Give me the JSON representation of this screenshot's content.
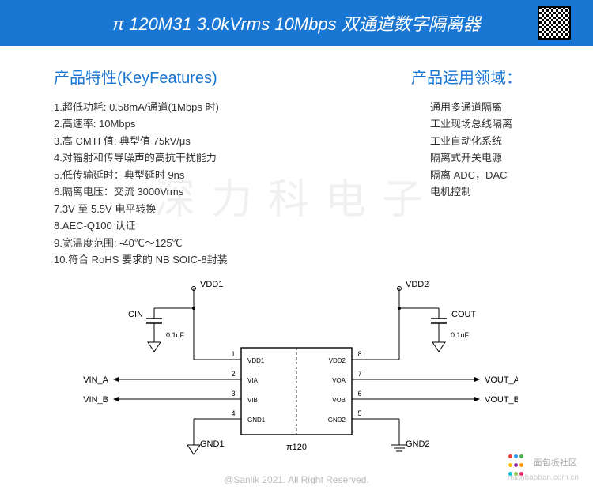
{
  "header": {
    "title": "π 120M31 3.0kVrms 10Mbps 双通道数字隔离器",
    "title_color": "#ffffff",
    "bg_color": "#1976d2"
  },
  "watermark": "深力科电子",
  "features": {
    "title": "产品特性(KeyFeatures)",
    "title_color": "#1976d2",
    "items": [
      "1.超低功耗: 0.58mA/通道(1Mbps 时)",
      "2.高速率: 10Mbps",
      "3.高 CMTI 值: 典型值 75kV/μs",
      "4.对辐射和传导噪声的高抗干扰能力",
      "5.低传输延时：典型延时 9ns",
      "6.隔离电压：交流 3000Vrms",
      "7.3V 至 5.5V 电平转换",
      "8.AEC-Q100 认证",
      "9.宽温度范围: -40℃～125℃",
      "10.符合 RoHS 要求的 NB SOIC-8封装"
    ]
  },
  "applications": {
    "title": "产品运用领域：",
    "title_color": "#1976d2",
    "items": [
      "通用多通道隔离",
      "工业现场总线隔离",
      "工业自动化系统",
      "隔离式开关电源",
      "隔离 ADC，DAC",
      "电机控制"
    ]
  },
  "schematic": {
    "chip_label": "π120",
    "left_power": "VDD1",
    "right_power": "VDD2",
    "cap_left": {
      "name": "CIN",
      "value": "0.1uF"
    },
    "cap_right": {
      "name": "COUT",
      "value": "0.1uF"
    },
    "gnd_left": "GND1",
    "gnd_right": "GND2",
    "inputs": [
      "VIN_A",
      "VIN_B"
    ],
    "outputs": [
      "VOUT_A",
      "VOUT_B"
    ],
    "pins_left": [
      {
        "n": "1",
        "lbl": "VDD1"
      },
      {
        "n": "2",
        "lbl": "VIA"
      },
      {
        "n": "3",
        "lbl": "VIB"
      },
      {
        "n": "4",
        "lbl": "GND1"
      }
    ],
    "pins_right": [
      {
        "n": "8",
        "lbl": "VDD2"
      },
      {
        "n": "7",
        "lbl": "VOA"
      },
      {
        "n": "6",
        "lbl": "VOB"
      },
      {
        "n": "5",
        "lbl": "GND2"
      }
    ],
    "stroke": "#000000",
    "stroke_width": 1.2
  },
  "footer": {
    "copyright": "@Sanlik 2021. All Right Reserved.",
    "community": "面包板社区",
    "community_sub": "mianbaoban.com.cn",
    "dot_colors": [
      "#f44336",
      "#2196f3",
      "#4caf50",
      "#ffc107",
      "#9c27b0",
      "#ff9800",
      "#00bcd4",
      "#8bc34a",
      "#e91e63"
    ]
  }
}
